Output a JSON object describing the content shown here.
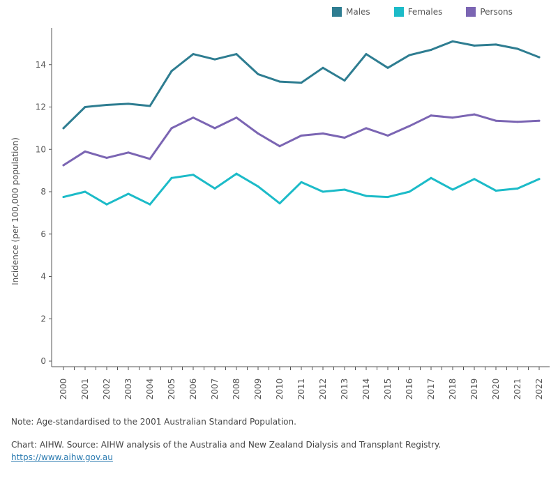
{
  "legend": [
    {
      "label": "Males",
      "color": "#2e7d91"
    },
    {
      "label": "Females",
      "color": "#1cbbc8"
    },
    {
      "label": "Persons",
      "color": "#7b65b3"
    }
  ],
  "chart_data": {
    "type": "line",
    "ylabel": "Incidence (per 100,000 population)",
    "xlabel": "",
    "ylim": [
      0,
      16
    ],
    "yticks": [
      0,
      2,
      4,
      6,
      8,
      10,
      12,
      14
    ],
    "grid": false,
    "legend_position": "top-right",
    "x": [
      "2000",
      "2001",
      "2002",
      "2003",
      "2004",
      "2005",
      "2006",
      "2007",
      "2008",
      "2009",
      "2010",
      "2011",
      "2012",
      "2013",
      "2014",
      "2015",
      "2016",
      "2017",
      "2018",
      "2019",
      "2020",
      "2021",
      "2022"
    ],
    "series": [
      {
        "name": "Males",
        "color": "#2e7d91",
        "values": [
          11.0,
          12.0,
          12.1,
          12.15,
          12.05,
          13.7,
          14.5,
          14.25,
          14.5,
          13.55,
          13.2,
          13.15,
          13.85,
          13.25,
          14.5,
          13.85,
          14.45,
          14.7,
          15.1,
          14.9,
          14.95,
          14.75,
          14.35
        ]
      },
      {
        "name": "Females",
        "color": "#1cbbc8",
        "values": [
          7.75,
          8.0,
          7.4,
          7.9,
          7.4,
          8.65,
          8.8,
          8.15,
          8.85,
          8.25,
          7.45,
          8.45,
          8.0,
          8.1,
          7.8,
          7.75,
          8.0,
          8.65,
          8.1,
          8.6,
          8.05,
          8.15,
          8.6
        ]
      },
      {
        "name": "Persons",
        "color": "#7b65b3",
        "values": [
          9.25,
          9.9,
          9.6,
          9.85,
          9.55,
          11.0,
          11.5,
          11.0,
          11.5,
          10.75,
          10.15,
          10.65,
          10.75,
          10.55,
          11.0,
          10.65,
          11.1,
          11.6,
          11.5,
          11.65,
          11.35,
          11.3,
          11.35
        ]
      }
    ]
  },
  "footer": {
    "note": "Note: Age-standardised to the 2001 Australian Standard Population.",
    "source": "Chart: AIHW. Source: AIHW analysis of the Australia and New Zealand Dialysis and Transplant Registry.",
    "link": "https://www.aihw.gov.au"
  }
}
